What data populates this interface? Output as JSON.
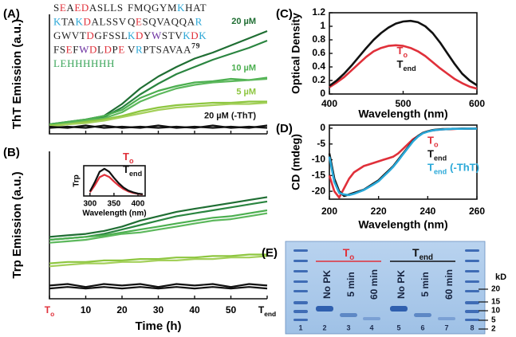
{
  "chart_data": [
    {
      "type": "line",
      "panel": "(A)",
      "ylabel": "ThT Emission (a.u.)",
      "xlim": [
        0,
        60
      ],
      "ylim": [
        0,
        1
      ],
      "legend": "end",
      "x": [
        0,
        5,
        10,
        15,
        20,
        25,
        30,
        35,
        40,
        45,
        50,
        55,
        60
      ],
      "series": [
        {
          "name": "20 µM",
          "color": "#1f6e33",
          "values": [
            0.08,
            0.1,
            0.12,
            0.15,
            0.25,
            0.38,
            0.48,
            0.56,
            0.63,
            0.68,
            0.74,
            0.8,
            0.86
          ]
        },
        {
          "color": "#2a8540",
          "values": [
            0.08,
            0.09,
            0.11,
            0.14,
            0.22,
            0.33,
            0.42,
            0.5,
            0.56,
            0.62,
            0.67,
            0.72,
            0.78
          ]
        },
        {
          "name": "10 µM",
          "color": "#4caf50",
          "values": [
            0.08,
            0.1,
            0.12,
            0.15,
            0.2,
            0.3,
            0.36,
            0.4,
            0.43,
            0.44,
            0.46,
            0.45,
            0.47
          ]
        },
        {
          "color": "#5cb85c",
          "values": [
            0.07,
            0.09,
            0.11,
            0.13,
            0.18,
            0.27,
            0.33,
            0.38,
            0.41,
            0.43,
            0.44,
            0.45,
            0.46
          ]
        },
        {
          "name": "5 µM",
          "color": "#8dc63f",
          "values": [
            0.07,
            0.08,
            0.1,
            0.12,
            0.15,
            0.19,
            0.22,
            0.24,
            0.25,
            0.26,
            0.26,
            0.27,
            0.27
          ]
        },
        {
          "color": "#a4d05a",
          "values": [
            0.06,
            0.08,
            0.09,
            0.11,
            0.14,
            0.17,
            0.2,
            0.22,
            0.23,
            0.24,
            0.25,
            0.25,
            0.26
          ]
        },
        {
          "name": "20 µM (-ThT)",
          "color": "#111111",
          "values": [
            0.06,
            0.05,
            0.07,
            0.05,
            0.06,
            0.05,
            0.07,
            0.05,
            0.06,
            0.05,
            0.06,
            0.05,
            0.07
          ]
        },
        {
          "color": "#111111",
          "values": [
            0.05,
            0.06,
            0.05,
            0.07,
            0.05,
            0.06,
            0.05,
            0.06,
            0.05,
            0.07,
            0.05,
            0.06,
            0.05
          ]
        }
      ]
    },
    {
      "type": "line",
      "panel": "(B)",
      "ylabel": "Trp Emission (a.u.)",
      "xlabel": "Time (h)",
      "xlim": [
        0,
        60
      ],
      "ylim": [
        0,
        1
      ],
      "xticks": [
        {
          "value": 0,
          "label": "T",
          "sub": "o",
          "color": "#e0303a"
        },
        10,
        20,
        30,
        40,
        50,
        {
          "value": 60,
          "label": "T",
          "sub": "end"
        }
      ],
      "x": [
        0,
        5,
        10,
        15,
        20,
        25,
        30,
        35,
        40,
        45,
        50,
        55,
        60
      ],
      "series": [
        {
          "color": "#1f6e33",
          "values": [
            0.42,
            0.43,
            0.44,
            0.46,
            0.49,
            0.53,
            0.56,
            0.59,
            0.61,
            0.63,
            0.65,
            0.67,
            0.69
          ]
        },
        {
          "color": "#2a8540",
          "values": [
            0.4,
            0.41,
            0.42,
            0.44,
            0.47,
            0.5,
            0.53,
            0.56,
            0.58,
            0.6,
            0.62,
            0.64,
            0.66
          ]
        },
        {
          "color": "#4caf50",
          "values": [
            0.4,
            0.41,
            0.42,
            0.43,
            0.45,
            0.47,
            0.49,
            0.51,
            0.53,
            0.55,
            0.56,
            0.58,
            0.6
          ]
        },
        {
          "color": "#5cb85c",
          "values": [
            0.38,
            0.39,
            0.4,
            0.42,
            0.44,
            0.45,
            0.47,
            0.49,
            0.51,
            0.53,
            0.54,
            0.56,
            0.58
          ]
        },
        {
          "color": "#8dc63f",
          "values": [
            0.24,
            0.25,
            0.25,
            0.26,
            0.26,
            0.27,
            0.27,
            0.28,
            0.28,
            0.29,
            0.29,
            0.3,
            0.3
          ]
        },
        {
          "color": "#a4d05a",
          "values": [
            0.22,
            0.23,
            0.24,
            0.24,
            0.25,
            0.25,
            0.26,
            0.26,
            0.27,
            0.27,
            0.28,
            0.28,
            0.29
          ]
        },
        {
          "color": "#111111",
          "values": [
            0.09,
            0.1,
            0.08,
            0.1,
            0.09,
            0.1,
            0.08,
            0.1,
            0.09,
            0.1,
            0.08,
            0.1,
            0.09
          ]
        },
        {
          "color": "#111111",
          "values": [
            0.07,
            0.08,
            0.07,
            0.08,
            0.07,
            0.08,
            0.07,
            0.08,
            0.07,
            0.08,
            0.07,
            0.08,
            0.07
          ]
        }
      ]
    },
    {
      "type": "line",
      "ylabel": "Trp",
      "xlabel": "Wavelength (nm)",
      "xlim": [
        287,
        415
      ],
      "ylim": [
        0,
        1
      ],
      "xticks": [
        300,
        350,
        400
      ],
      "frame": true,
      "legend": "upper right",
      "x": [
        300,
        310,
        320,
        330,
        340,
        350,
        360,
        370,
        380,
        390,
        400,
        410
      ],
      "series": [
        {
          "name": {
            "text": "T",
            "sub": "o"
          },
          "color": "#e0303a",
          "values": [
            0.12,
            0.35,
            0.62,
            0.7,
            0.63,
            0.48,
            0.34,
            0.23,
            0.15,
            0.1,
            0.07,
            0.05
          ]
        },
        {
          "name": {
            "text": "T",
            "sub": "end"
          },
          "color": "#111111",
          "values": [
            0.15,
            0.45,
            0.8,
            0.9,
            0.8,
            0.6,
            0.42,
            0.28,
            0.18,
            0.12,
            0.08,
            0.06
          ]
        }
      ]
    },
    {
      "type": "line",
      "panel": "(C)",
      "ylabel": "Optical Density",
      "xlabel": "Wavelength (nm)",
      "xlim": [
        400,
        600
      ],
      "ylim": [
        0,
        1.2
      ],
      "xticks": [
        400,
        500,
        600
      ],
      "yticks": [
        0,
        0.2,
        0.4,
        0.6,
        0.8,
        1,
        1.2
      ],
      "frame": true,
      "legend": "center",
      "x": [
        400,
        410,
        420,
        430,
        440,
        450,
        460,
        470,
        480,
        490,
        500,
        510,
        520,
        530,
        540,
        550,
        560,
        570,
        580,
        590,
        600
      ],
      "series": [
        {
          "name": {
            "text": "T",
            "sub": "o"
          },
          "color": "#e0303a",
          "values": [
            0.1,
            0.17,
            0.25,
            0.35,
            0.45,
            0.55,
            0.63,
            0.68,
            0.71,
            0.72,
            0.71,
            0.68,
            0.63,
            0.56,
            0.47,
            0.38,
            0.3,
            0.22,
            0.16,
            0.11,
            0.08
          ]
        },
        {
          "name": {
            "text": "T",
            "sub": "end"
          },
          "color": "#111111",
          "values": [
            0.12,
            0.2,
            0.3,
            0.42,
            0.55,
            0.68,
            0.8,
            0.9,
            0.98,
            1.04,
            1.07,
            1.08,
            1.06,
            1.0,
            0.9,
            0.76,
            0.6,
            0.44,
            0.3,
            0.2,
            0.13
          ]
        }
      ]
    },
    {
      "type": "line",
      "panel": "(D)",
      "ylabel": "CD (mdeg)",
      "xlabel": "Wavelength (nm)",
      "xlim": [
        200,
        260
      ],
      "ylim": [
        -22.5,
        1
      ],
      "xticks": [
        200,
        220,
        240,
        260
      ],
      "yticks": [
        0,
        -5,
        -10,
        -15,
        -20
      ],
      "frame": true,
      "legend": "center right",
      "x": [
        200,
        202,
        204,
        206,
        208,
        210,
        212,
        214,
        216,
        218,
        220,
        222,
        224,
        226,
        228,
        230,
        232,
        234,
        236,
        238,
        240,
        242,
        244,
        246,
        248,
        250,
        252,
        254,
        256,
        258,
        260
      ],
      "series": [
        {
          "name": {
            "text": "T",
            "sub": "o"
          },
          "color": "#e0303a",
          "values": [
            -15,
            -20,
            -22,
            -19,
            -16,
            -14,
            -13,
            -12,
            -11.5,
            -11,
            -10.5,
            -10,
            -9.5,
            -9,
            -8,
            -6.5,
            -5,
            -3.5,
            -2.5,
            -1.5,
            -1,
            -0.7,
            -0.5,
            -0.4,
            -0.3,
            -0.3,
            -0.2,
            -0.2,
            -0.1,
            -0.1,
            0
          ]
        },
        {
          "name": {
            "text": "T",
            "sub": "end"
          },
          "color": "#111111",
          "values": [
            -8,
            -16,
            -20,
            -21.5,
            -21,
            -20.5,
            -20,
            -19.5,
            -18.5,
            -17.5,
            -16.5,
            -15,
            -13.5,
            -12,
            -10,
            -8,
            -6,
            -4,
            -2.5,
            -1.5,
            -1,
            -0.6,
            -0.4,
            -0.3,
            -0.3,
            -0.2,
            -0.2,
            -0.1,
            -0.1,
            -0.1,
            -0.1
          ]
        },
        {
          "name": {
            "text": "T",
            "sub": "end",
            "after": "(-ThT)"
          },
          "color": "#29a8d8",
          "values": [
            -9,
            -17,
            -20.5,
            -21,
            -21.2,
            -20.8,
            -20.2,
            -19.6,
            -18.7,
            -17.8,
            -16.8,
            -15.3,
            -13.8,
            -12.2,
            -10.3,
            -8.2,
            -6.2,
            -4.2,
            -2.7,
            -1.6,
            -1.1,
            -0.7,
            -0.5,
            -0.4,
            -0.3,
            -0.2,
            -0.2,
            -0.2,
            -0.1,
            -0.1,
            -0.1
          ]
        }
      ]
    }
  ],
  "sequence": {
    "rows": [
      {
        "left": [
          {
            "text": "S",
            "color": "#222222"
          },
          {
            "text": "E",
            "color": "#e0303a"
          },
          {
            "text": "A",
            "color": "#222222"
          },
          {
            "text": "ED",
            "color": "#e0303a"
          },
          {
            "text": "ASLLS",
            "color": "#222222"
          }
        ],
        "right": [
          {
            "text": "FMQGYM",
            "color": "#222222"
          },
          {
            "text": "K",
            "color": "#2aa6d6"
          },
          {
            "text": "HAT",
            "color": "#222222"
          }
        ]
      },
      {
        "left": [
          {
            "text": "K",
            "color": "#2aa6d6"
          },
          {
            "text": "TA",
            "color": "#222222"
          },
          {
            "text": "K",
            "color": "#2aa6d6"
          },
          {
            "text": "D",
            "color": "#e0303a"
          },
          {
            "text": "ALSSV",
            "color": "#222222"
          }
        ],
        "right": [
          {
            "text": "Q",
            "color": "#222222"
          },
          {
            "text": "E",
            "color": "#e0303a"
          },
          {
            "text": "SQVAQQA",
            "color": "#222222"
          },
          {
            "text": "R",
            "color": "#2aa6d6"
          }
        ]
      },
      {
        "left": [
          {
            "text": "GWVT",
            "color": "#222222"
          },
          {
            "text": "D",
            "color": "#e0303a"
          },
          {
            "text": "GFSSL",
            "color": "#222222"
          }
        ],
        "right": [
          {
            "text": "K",
            "color": "#2aa6d6"
          },
          {
            "text": "D",
            "color": "#e0303a"
          },
          {
            "text": "Y",
            "color": "#222222"
          },
          {
            "text": "W",
            "color": "#6b2fa0"
          },
          {
            "text": "STV",
            "color": "#222222"
          },
          {
            "text": "K",
            "color": "#2aa6d6"
          },
          {
            "text": "D",
            "color": "#e0303a"
          },
          {
            "text": "K",
            "color": "#2aa6d6"
          }
        ]
      },
      {
        "left": [
          {
            "text": "FS",
            "color": "#222222"
          },
          {
            "text": "E",
            "color": "#e0303a"
          },
          {
            "text": "F",
            "color": "#222222"
          },
          {
            "text": "W",
            "color": "#6b2fa0"
          },
          {
            "text": "D",
            "color": "#e0303a"
          },
          {
            "text": "L",
            "color": "#222222"
          },
          {
            "text": "D",
            "color": "#e0303a"
          },
          {
            "text": "P",
            "color": "#222222"
          },
          {
            "text": "E",
            "color": "#e0303a"
          }
        ],
        "right": [
          {
            "text": "V",
            "color": "#222222"
          },
          {
            "text": "R",
            "color": "#2aa6d6"
          },
          {
            "text": "PTSAVAA",
            "color": "#222222"
          },
          {
            "text": "79",
            "color": "#222222",
            "sup": true
          }
        ]
      },
      {
        "left": [
          {
            "text": "LEHHHHHH",
            "color": "#3aa55a"
          }
        ],
        "right": []
      }
    ]
  },
  "gel": {
    "panel": "(E)",
    "groups": [
      {
        "text": "T",
        "sub": "o",
        "color": "#e0303a"
      },
      {
        "text": "T",
        "sub": "end",
        "color": "#111111"
      }
    ],
    "lanes": [
      "No PK",
      "5 min",
      "60 min",
      "No PK",
      "5 min",
      "60 min"
    ],
    "lane_numbers": [
      "1",
      "2",
      "3",
      "4",
      "5",
      "6",
      "7",
      "8"
    ],
    "unit": "kD",
    "markers": [
      "20",
      "15",
      "10",
      "5",
      "2"
    ]
  }
}
